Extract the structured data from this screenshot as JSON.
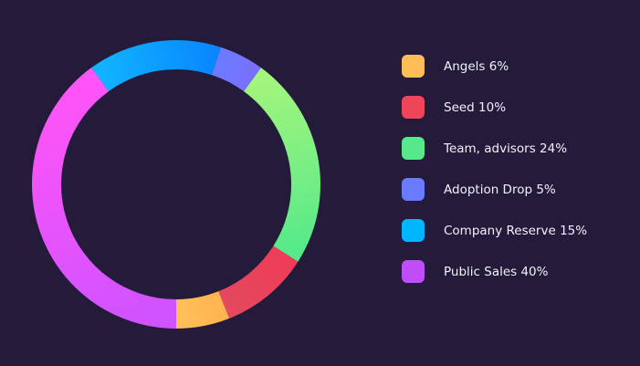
{
  "chart_data": {
    "type": "pie",
    "donut": true,
    "title": "",
    "legend_position": "right",
    "slices": [
      {
        "label": "Angels 6%",
        "name": "Angels",
        "value": 6,
        "color": "#ffbd59",
        "gradient": [
          "#ffc05a",
          "#ffb44f"
        ]
      },
      {
        "label": "Seed 10%",
        "name": "Seed",
        "value": 10,
        "color": "#ee4658",
        "gradient": [
          "#e34a5e",
          "#f03b58"
        ]
      },
      {
        "label": "Team, advisors 24%",
        "name": "Team, advisors",
        "value": 24,
        "color": "#56e88a",
        "gradient": [
          "#56e98a",
          "#a4f57c"
        ]
      },
      {
        "label": "Adoption Drop 5%",
        "name": "Adoption Drop",
        "value": 5,
        "color": "#6b7bff",
        "gradient": [
          "#7a70ff",
          "#6b7bff"
        ]
      },
      {
        "label": "Company Reserve 15%",
        "name": "Company Reserve",
        "value": 15,
        "color": "#00b7ff",
        "gradient": [
          "#0a86ff",
          "#11b4ff"
        ]
      },
      {
        "label": "Public Sales 40%",
        "name": "Public Sales",
        "value": 40,
        "color": "#c14df9",
        "gradient": [
          "#ff54f7",
          "#cf53ff"
        ]
      }
    ]
  }
}
